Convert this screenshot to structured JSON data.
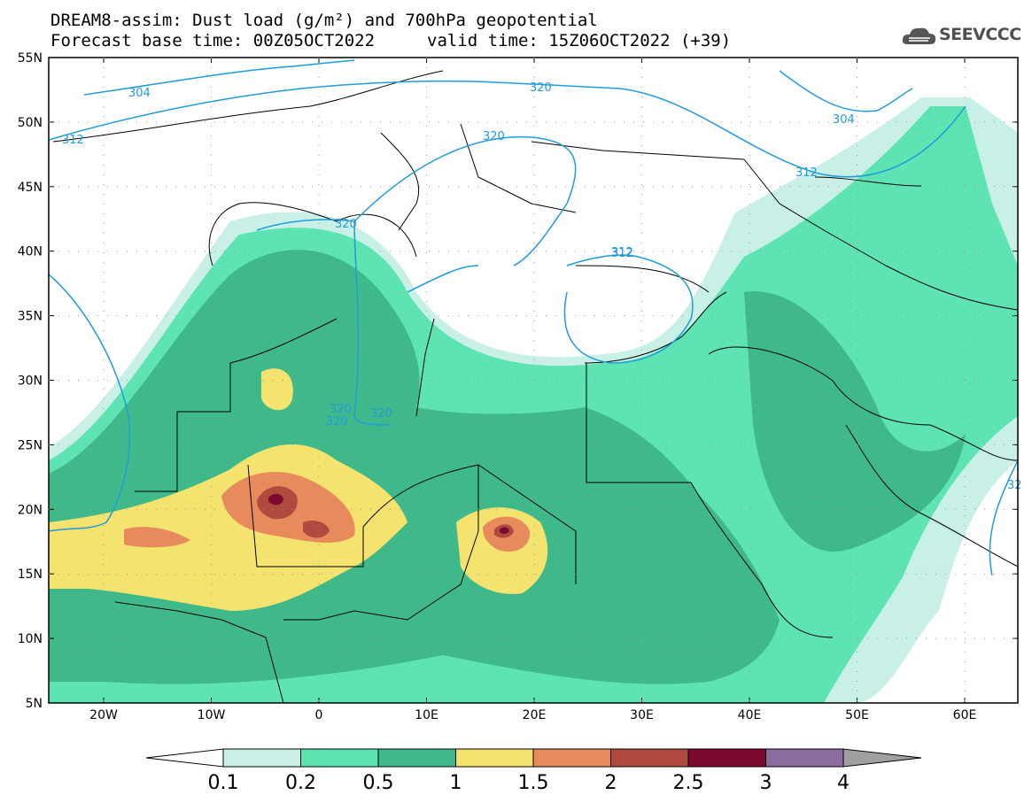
{
  "title": {
    "line1": "DREAM8-assim: Dust load (g/m²) and 700hPa geopotential",
    "line2_left": "Forecast base time: 00Z05OCT2022",
    "line2_right": "valid time: 15Z06OCT2022 (+39)"
  },
  "logo": {
    "text": "SEEVCCC",
    "icon": "cloud-logo-icon"
  },
  "axes": {
    "lat_labels": [
      "55N",
      "50N",
      "45N",
      "40N",
      "35N",
      "30N",
      "25N",
      "20N",
      "15N",
      "10N",
      "5N"
    ],
    "lon_labels": [
      "20W",
      "10W",
      "0",
      "10E",
      "20E",
      "30E",
      "40E",
      "50E",
      "60E"
    ]
  },
  "contours": {
    "labels": [
      "304",
      "312",
      "320",
      "320",
      "312",
      "304",
      "312",
      "312",
      "320",
      "320",
      "320",
      "320",
      "32"
    ]
  },
  "colorbar": {
    "ticks": [
      "0.1",
      "0.2",
      "0.5",
      "1",
      "1.5",
      "2",
      "2.5",
      "3",
      "4"
    ],
    "colors": [
      "#c8f0e6",
      "#5ee3b3",
      "#40b98a",
      "#f4e36e",
      "#e88b5c",
      "#b04a3f",
      "#7c0a2f",
      "#8c6ca0",
      "#a0a0a0"
    ]
  },
  "colors": {
    "contour": "#1f9bde",
    "border": "#000000"
  }
}
